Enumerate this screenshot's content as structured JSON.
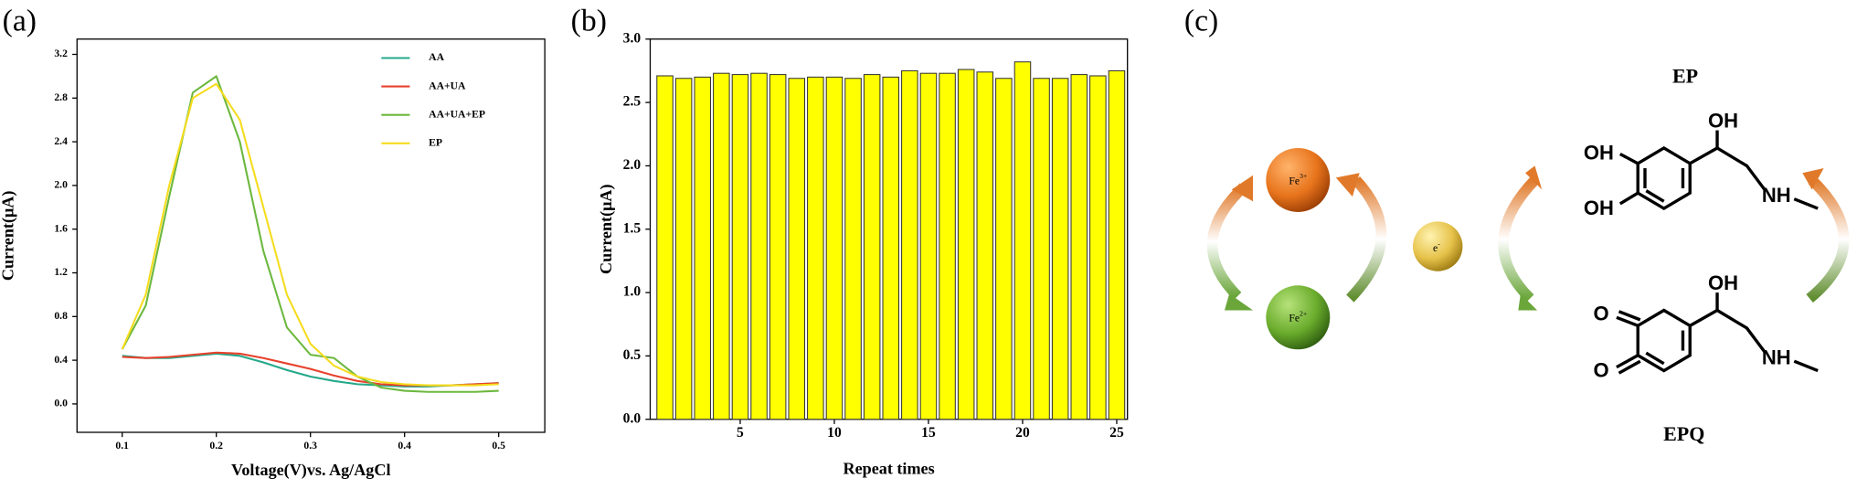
{
  "chart_data": [
    {
      "type": "line",
      "label": "(a)",
      "x_label": "Voltage(V)vs. Ag/AgCl",
      "y_label": "Current(μA)",
      "x": [
        0.1,
        0.125,
        0.15,
        0.175,
        0.2,
        0.225,
        0.25,
        0.275,
        0.3,
        0.325,
        0.35,
        0.375,
        0.4,
        0.425,
        0.45,
        0.475,
        0.5
      ],
      "series": [
        {
          "name": "AA",
          "color": "#25a88a",
          "values": [
            0.44,
            0.42,
            0.42,
            0.44,
            0.46,
            0.44,
            0.38,
            0.31,
            0.25,
            0.21,
            0.18,
            0.17,
            0.16,
            0.16,
            0.17,
            0.18,
            0.19
          ]
        },
        {
          "name": "AA+UA",
          "color": "#e8412c",
          "values": [
            0.43,
            0.42,
            0.43,
            0.45,
            0.47,
            0.46,
            0.42,
            0.37,
            0.32,
            0.26,
            0.21,
            0.18,
            0.17,
            0.17,
            0.17,
            0.18,
            0.19
          ]
        },
        {
          "name": "AA+UA+EP",
          "color": "#6cb83e",
          "values": [
            0.5,
            0.9,
            1.9,
            2.85,
            3.0,
            2.4,
            1.4,
            0.7,
            0.45,
            0.42,
            0.25,
            0.15,
            0.12,
            0.11,
            0.11,
            0.11,
            0.12
          ]
        },
        {
          "name": "EP",
          "color": "#f5dc1e",
          "values": [
            0.5,
            1.0,
            2.0,
            2.8,
            2.93,
            2.6,
            1.8,
            1.0,
            0.55,
            0.35,
            0.25,
            0.2,
            0.18,
            0.17,
            0.17,
            0.17,
            0.18
          ]
        }
      ],
      "xlim": [
        0.052,
        0.549
      ],
      "xticks": [
        0.1,
        0.2,
        0.3,
        0.4,
        0.5
      ],
      "ylim": [
        -0.26,
        3.34
      ],
      "yticks": [
        {
          "value": 0,
          "label": "0.0"
        },
        0.4,
        0.8,
        1.2,
        1.6,
        {
          "value": 2,
          "label": "2.0"
        },
        2.4,
        2.8,
        3.2
      ],
      "legend": "upper right"
    },
    {
      "type": "bar",
      "label": "(b)",
      "x_label": "Repeat times",
      "y_label": "Current(μA)",
      "color": "#ffff00",
      "x": [
        1,
        2,
        3,
        4,
        5,
        6,
        7,
        8,
        9,
        10,
        11,
        12,
        13,
        14,
        15,
        16,
        17,
        18,
        19,
        20,
        21,
        22,
        23,
        24,
        25
      ],
      "values": [
        2.71,
        2.69,
        2.7,
        2.73,
        2.72,
        2.73,
        2.72,
        2.69,
        2.7,
        2.7,
        2.69,
        2.72,
        2.7,
        2.75,
        2.73,
        2.73,
        2.76,
        2.74,
        2.69,
        2.82,
        2.69,
        2.69,
        2.72,
        2.71,
        2.75
      ],
      "xlim": [
        0.22,
        25.57
      ],
      "xticks": [
        5,
        10,
        15,
        20,
        25
      ],
      "ylim": [
        0,
        3
      ],
      "yticks": [
        {
          "value": 0,
          "label": "0.0"
        },
        0.5,
        {
          "value": 1,
          "label": "1.0"
        },
        1.5,
        {
          "value": 2,
          "label": "2.0"
        },
        2.5,
        {
          "value": 3,
          "label": "3.0"
        }
      ]
    }
  ],
  "diagram": {
    "label": "(c)",
    "ep": "EP",
    "epq": "EPQ",
    "fe3": {
      "symbol": "Fe",
      "charge": "3+"
    },
    "fe2": {
      "symbol": "Fe",
      "charge": "2+"
    },
    "electron": {
      "symbol": "e",
      "charge": "-"
    },
    "ep_groups": [
      "OH",
      "OH",
      "OH",
      "NH"
    ],
    "epq_groups": [
      "O",
      "O",
      "OH",
      "NH"
    ]
  }
}
